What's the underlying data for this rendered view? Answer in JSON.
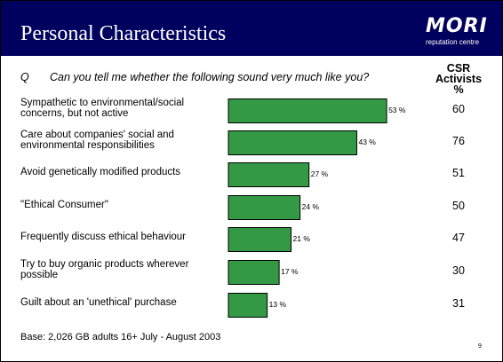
{
  "chart_data": {
    "type": "bar",
    "title": "Personal Characteristics",
    "logo": {
      "name": "MORI",
      "subtitle": "reputation centre"
    },
    "question_marker": "Q",
    "question": "Can you tell me whether the following sound very much like you?",
    "categories": [
      "Sympathetic to environmental/social concerns, but not active",
      "Care about companies' social and environmental responsibilities",
      "Avoid genetically modified products",
      "\"Ethical Consumer\"",
      "Frequently discuss ethical behaviour",
      "Try to buy organic products wherever possible",
      "Guilt about an 'unethical' purchase"
    ],
    "values": [
      53,
      43,
      27,
      24,
      21,
      17,
      13
    ],
    "value_labels": [
      "53 %",
      "43 %",
      "27 %",
      "24 %",
      "21 %",
      "17 %",
      "13 %"
    ],
    "color": "#339944",
    "csr_column": {
      "header": "CSR Activists",
      "unit": "%",
      "values": [
        60,
        76,
        51,
        50,
        47,
        30,
        31
      ]
    },
    "note": "Base: 2,026 GB adults 16+ July - August 2003",
    "page_number": "9"
  }
}
